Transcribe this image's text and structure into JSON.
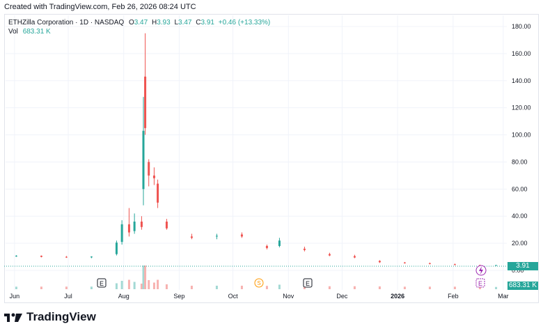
{
  "header": {
    "created_note": "Created with TradingView.com, Feb 26, 2026 08:24 UTC"
  },
  "legend": {
    "symbol": "ETHZilla Corporation · 1D · NASDAQ",
    "o_label": "O",
    "o_value": "3.47",
    "h_label": "H",
    "h_value": "3.93",
    "l_label": "L",
    "l_value": "3.47",
    "c_label": "C",
    "c_value": "3.91",
    "change": "+0.46 (+13.33%)",
    "vol_label": "Vol",
    "vol_value": "683.31 K"
  },
  "price_axis": {
    "ticks": [
      "180.00",
      "160.00",
      "140.00",
      "120.00",
      "100.00",
      "80.00",
      "60.00",
      "40.00",
      "20.00",
      "0.00"
    ]
  },
  "time_axis": {
    "ticks": [
      "Jun",
      "Jul",
      "Aug",
      "Sep",
      "Oct",
      "Nov",
      "Dec",
      "2026",
      "Feb",
      "Mar"
    ]
  },
  "last_price_tag": "3.91",
  "volume_tag": "683.31 K",
  "event_markers": [
    {
      "label": "E",
      "kind": "earnings"
    },
    {
      "label": "S",
      "kind": "split"
    },
    {
      "label": "E",
      "kind": "earnings"
    },
    {
      "label": "E",
      "kind": "earnings-upcoming"
    }
  ],
  "colors": {
    "up": "#26a69a",
    "down": "#ef5350",
    "grid": "#f0f3fa",
    "upcoming": "#9c27b0",
    "split": "#ff9800"
  },
  "brand": {
    "name": "TradingView"
  },
  "chart_data": {
    "type": "candlestick",
    "ylim": [
      0,
      180
    ],
    "x_range": [
      "2025-05-27",
      "2026-03-03"
    ],
    "candles": [
      {
        "date": "2025-06-02",
        "o": 10.5,
        "h": 11.2,
        "l": 10.0,
        "c": 10.8
      },
      {
        "date": "2025-06-16",
        "o": 10.8,
        "h": 11.0,
        "l": 9.6,
        "c": 10.0
      },
      {
        "date": "2025-06-30",
        "o": 10.0,
        "h": 10.6,
        "l": 9.2,
        "c": 9.5
      },
      {
        "date": "2025-07-14",
        "o": 9.6,
        "h": 10.4,
        "l": 9.0,
        "c": 10.2
      },
      {
        "date": "2025-07-28",
        "o": 12.0,
        "h": 22.0,
        "l": 11.0,
        "c": 20.5
      },
      {
        "date": "2025-07-31",
        "o": 21.0,
        "h": 37.0,
        "l": 19.0,
        "c": 34.0
      },
      {
        "date": "2025-08-04",
        "o": 34.0,
        "h": 46.0,
        "l": 25.0,
        "c": 28.0
      },
      {
        "date": "2025-08-07",
        "o": 29.0,
        "h": 42.0,
        "l": 27.0,
        "c": 36.0
      },
      {
        "date": "2025-08-11",
        "o": 36.0,
        "h": 40.0,
        "l": 30.0,
        "c": 32.0
      },
      {
        "date": "2025-08-12",
        "o": 60.0,
        "h": 128.0,
        "l": 48.0,
        "c": 103.0
      },
      {
        "date": "2025-08-13",
        "o": 143.0,
        "h": 175.0,
        "l": 100.0,
        "c": 105.0
      },
      {
        "date": "2025-08-15",
        "o": 80.0,
        "h": 82.0,
        "l": 62.0,
        "c": 70.0
      },
      {
        "date": "2025-08-18",
        "o": 70.0,
        "h": 76.0,
        "l": 63.0,
        "c": 68.0
      },
      {
        "date": "2025-08-20",
        "o": 64.0,
        "h": 67.0,
        "l": 46.0,
        "c": 50.0
      },
      {
        "date": "2025-08-25",
        "o": 36.0,
        "h": 38.0,
        "l": 30.0,
        "c": 31.0
      },
      {
        "date": "2025-09-08",
        "o": 25.0,
        "h": 27.0,
        "l": 23.0,
        "c": 24.0
      },
      {
        "date": "2025-09-22",
        "o": 25.0,
        "h": 27.0,
        "l": 23.0,
        "c": 25.5
      },
      {
        "date": "2025-10-06",
        "o": 26.5,
        "h": 28.0,
        "l": 24.0,
        "c": 25.0
      },
      {
        "date": "2025-10-20",
        "o": 18.0,
        "h": 19.0,
        "l": 15.5,
        "c": 16.5
      },
      {
        "date": "2025-10-27",
        "o": 18.0,
        "h": 24.0,
        "l": 17.0,
        "c": 22.0
      },
      {
        "date": "2025-11-10",
        "o": 16.0,
        "h": 17.5,
        "l": 14.0,
        "c": 15.0
      },
      {
        "date": "2025-11-24",
        "o": 12.0,
        "h": 13.0,
        "l": 10.5,
        "c": 11.0
      },
      {
        "date": "2025-12-08",
        "o": 10.5,
        "h": 11.5,
        "l": 9.0,
        "c": 9.5
      },
      {
        "date": "2025-12-22",
        "o": 7.0,
        "h": 7.5,
        "l": 5.5,
        "c": 6.0
      },
      {
        "date": "2026-01-05",
        "o": 5.8,
        "h": 6.2,
        "l": 5.0,
        "c": 5.5
      },
      {
        "date": "2026-01-19",
        "o": 5.2,
        "h": 5.8,
        "l": 4.5,
        "c": 5.0
      },
      {
        "date": "2026-02-02",
        "o": 4.5,
        "h": 5.0,
        "l": 3.8,
        "c": 4.0
      },
      {
        "date": "2026-02-16",
        "o": 3.8,
        "h": 4.2,
        "l": 3.3,
        "c": 3.5
      },
      {
        "date": "2026-02-25",
        "o": 3.47,
        "h": 3.93,
        "l": 3.47,
        "c": 3.91
      }
    ]
  }
}
